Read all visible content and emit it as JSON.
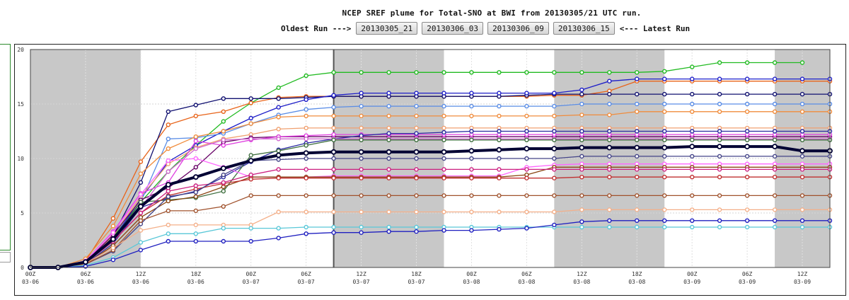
{
  "header": {
    "title": "NCEP SREF plume for Total-SNO at BWI from 20130305/21 UTC run.",
    "oldest_label": "Oldest Run --->",
    "latest_label": "<--- Latest Run",
    "runs": [
      "20130305_21",
      "20130306_03",
      "20130306_09",
      "20130306_15"
    ]
  },
  "chart_data": {
    "type": "line",
    "title": "NCEP SREF plume for Total-SNO at BWI from 20130305/21 UTC run.",
    "xlabel": "",
    "ylabel": "",
    "x_hours": [
      0,
      3,
      6,
      9,
      12,
      15,
      18,
      21,
      24,
      27,
      30,
      33,
      36,
      39,
      42,
      45,
      48,
      51,
      54,
      57,
      60,
      63,
      66,
      69,
      72,
      75,
      78,
      81,
      84,
      87
    ],
    "xlim": [
      0,
      87
    ],
    "ylim": [
      0,
      20
    ],
    "yticks": [
      0,
      5,
      10,
      15,
      20
    ],
    "xtick_labels": [
      {
        "t": "00Z",
        "d": "03-06"
      },
      {
        "t": "06Z",
        "d": "03-06"
      },
      {
        "t": "12Z",
        "d": "03-06"
      },
      {
        "t": "18Z",
        "d": "03-06"
      },
      {
        "t": "00Z",
        "d": "03-07"
      },
      {
        "t": "06Z",
        "d": "03-07"
      },
      {
        "t": "12Z",
        "d": "03-07"
      },
      {
        "t": "18Z",
        "d": "03-07"
      },
      {
        "t": "00Z",
        "d": "03-08"
      },
      {
        "t": "06Z",
        "d": "03-08"
      },
      {
        "t": "12Z",
        "d": "03-08"
      },
      {
        "t": "18Z",
        "d": "03-08"
      },
      {
        "t": "00Z",
        "d": "03-09"
      },
      {
        "t": "06Z",
        "d": "03-09"
      },
      {
        "t": "12Z",
        "d": "03-09"
      }
    ],
    "night_shading_hours": [
      [
        0,
        12
      ],
      [
        33,
        45
      ],
      [
        57,
        69
      ],
      [
        81,
        87
      ]
    ],
    "current_time_hour": 33,
    "grid": true,
    "series": [
      {
        "color": "#22bb22",
        "values": [
          0,
          0,
          0.5,
          2.8,
          6,
          8.8,
          11.2,
          13.4,
          15.1,
          16.5,
          17.6,
          17.9,
          17.9,
          17.9,
          17.9,
          17.9,
          17.9,
          17.9,
          17.9,
          17.9,
          17.9,
          17.9,
          17.9,
          18.0,
          18.4,
          18.8,
          18.8,
          18.8,
          18.8,
          null
        ]
      },
      {
        "color": "#e8641a",
        "values": [
          0,
          0,
          0.6,
          4.5,
          9.7,
          13.1,
          13.9,
          14.3,
          15.1,
          15.6,
          15.7,
          15.7,
          15.7,
          15.7,
          15.7,
          15.7,
          15.7,
          15.7,
          15.7,
          15.8,
          15.8,
          16.2,
          17.1,
          17.1,
          17.1,
          17.1,
          17.1,
          17.1,
          17.1,
          17.1
        ]
      },
      {
        "color": "#101070",
        "values": [
          0,
          0,
          0.4,
          2.9,
          7.8,
          14.3,
          14.9,
          15.5,
          15.5,
          15.5,
          15.6,
          15.7,
          15.7,
          15.7,
          15.7,
          15.7,
          15.7,
          15.7,
          15.8,
          15.9,
          15.9,
          15.9,
          15.9,
          15.9,
          15.9,
          15.9,
          15.9,
          15.9,
          15.9,
          15.9
        ]
      },
      {
        "color": "#1e1ec8",
        "values": [
          0,
          0,
          0.3,
          2.6,
          6.3,
          9.7,
          11.2,
          12.5,
          13.7,
          14.7,
          15.4,
          15.8,
          16.0,
          16.0,
          16.0,
          16.0,
          16.0,
          16.0,
          16.0,
          16.0,
          16.3,
          17.1,
          17.3,
          17.3,
          17.3,
          17.3,
          17.3,
          17.3,
          17.3,
          17.3
        ]
      },
      {
        "color": "#5a8de6",
        "values": [
          0,
          0,
          0.4,
          2.4,
          6.0,
          11.8,
          11.9,
          12.3,
          13.2,
          14.0,
          14.5,
          14.7,
          14.8,
          14.8,
          14.8,
          14.8,
          14.8,
          14.8,
          14.8,
          14.8,
          15.0,
          15.0,
          15.0,
          15.0,
          15.0,
          15.0,
          15.0,
          15.0,
          15.0,
          15.0
        ]
      },
      {
        "color": "#f08c3c",
        "values": [
          0,
          0,
          0.8,
          3.8,
          8.6,
          10.9,
          12.0,
          12.5,
          13.2,
          13.8,
          13.9,
          13.9,
          13.9,
          13.9,
          13.9,
          13.9,
          13.9,
          13.9,
          13.9,
          13.9,
          14.0,
          14.0,
          14.3,
          14.3,
          14.3,
          14.3,
          14.3,
          14.3,
          14.3,
          14.3
        ]
      },
      {
        "color": "#f0a070",
        "values": [
          0,
          0,
          0.5,
          2.9,
          6.5,
          9.5,
          11.0,
          11.8,
          12.2,
          12.7,
          12.8,
          12.8,
          12.8,
          12.8,
          12.8,
          12.8,
          12.8,
          12.8,
          12.8,
          12.8,
          12.8,
          12.8,
          12.8,
          12.8,
          12.8,
          12.8,
          12.8,
          12.8,
          12.8,
          12.8
        ]
      },
      {
        "color": "#660066",
        "values": [
          0,
          0,
          0.5,
          3.0,
          6.2,
          7.3,
          9.2,
          11.5,
          11.9,
          12.0,
          12.0,
          12.0,
          12.0,
          12.0,
          12.0,
          12.0,
          12.0,
          12.0,
          12.0,
          12.0,
          12.0,
          12.0,
          12.0,
          12.0,
          12.0,
          12.0,
          12.0,
          12.0,
          12.0,
          12.0
        ]
      },
      {
        "color": "#e040e0",
        "values": [
          0,
          0,
          0.6,
          3.3,
          6.8,
          7.8,
          11.6,
          11.2,
          11.7,
          12.0,
          12.1,
          12.2,
          12.2,
          12.2,
          12.2,
          12.2,
          12.2,
          12.2,
          12.2,
          12.2,
          12.2,
          12.2,
          12.2,
          12.2,
          12.2,
          12.2,
          12.2,
          12.2,
          12.2,
          12.2
        ]
      },
      {
        "color": "#2a2aa0",
        "values": [
          0,
          0,
          0.3,
          2.2,
          5.5,
          6.4,
          7.0,
          8.3,
          9.7,
          10.8,
          11.4,
          11.8,
          12.1,
          12.3,
          12.3,
          12.4,
          12.5,
          12.5,
          12.5,
          12.5,
          12.5,
          12.5,
          12.5,
          12.5,
          12.5,
          12.5,
          12.5,
          12.5,
          12.5,
          12.5
        ]
      },
      {
        "color": "#d06ad0",
        "values": [
          0,
          0,
          0.4,
          2.5,
          5.5,
          8.8,
          10.9,
          11.7,
          11.8,
          11.8,
          11.8,
          11.8,
          11.8,
          11.8,
          11.8,
          11.8,
          11.8,
          11.8,
          11.8,
          11.8,
          11.8,
          11.8,
          11.8,
          11.8,
          11.8,
          11.8,
          11.8,
          11.8,
          11.8,
          11.8
        ]
      },
      {
        "color": "#407040",
        "values": [
          0,
          0,
          0.4,
          2.6,
          6.0,
          6.2,
          6.4,
          7.0,
          10.3,
          10.7,
          11.2,
          11.7,
          11.7,
          11.7,
          11.7,
          11.7,
          11.7,
          11.7,
          11.7,
          11.7,
          11.7,
          11.7,
          11.7,
          11.7,
          11.7,
          11.7,
          11.7,
          11.7,
          11.7,
          11.7
        ]
      },
      {
        "color": "#000033",
        "values": [
          0,
          0,
          0.5,
          2.6,
          5.6,
          7.6,
          8.3,
          9.1,
          9.8,
          10.3,
          10.5,
          10.6,
          10.6,
          10.6,
          10.6,
          10.6,
          10.7,
          10.8,
          10.9,
          10.9,
          11.0,
          11.0,
          11.0,
          11.0,
          11.1,
          11.1,
          11.1,
          11.1,
          10.7,
          10.7
        ]
      },
      {
        "color": "#ff66ff",
        "values": [
          0,
          0,
          0.6,
          3.2,
          6.7,
          9.8,
          10.0,
          9.2,
          8.3,
          8.3,
          8.3,
          8.4,
          8.4,
          8.4,
          8.4,
          8.4,
          8.4,
          8.4,
          9.2,
          9.4,
          9.5,
          9.5,
          9.5,
          9.5,
          9.5,
          9.5,
          9.5,
          9.5,
          9.5,
          9.5
        ]
      },
      {
        "color": "#8b4513",
        "values": [
          0,
          0,
          0.3,
          2.0,
          4.6,
          6.1,
          6.5,
          7.4,
          8.3,
          8.3,
          8.3,
          8.3,
          8.3,
          8.3,
          8.3,
          8.3,
          8.3,
          8.3,
          8.5,
          9.2,
          9.2,
          9.2,
          9.2,
          9.2,
          9.2,
          9.2,
          9.2,
          9.2,
          9.2,
          9.2
        ]
      },
      {
        "color": "#c03030",
        "values": [
          0,
          0,
          0.4,
          2.4,
          5.0,
          6.6,
          7.2,
          7.7,
          8.1,
          8.2,
          8.2,
          8.2,
          8.2,
          8.2,
          8.2,
          8.2,
          8.2,
          8.2,
          8.2,
          8.2,
          8.3,
          8.3,
          8.3,
          8.3,
          8.3,
          8.3,
          8.3,
          8.3,
          8.3,
          8.3
        ]
      },
      {
        "color": "#cc2080",
        "values": [
          0,
          0,
          0.4,
          2.4,
          5.0,
          7.0,
          7.5,
          7.8,
          8.5,
          9.0,
          9.0,
          9.0,
          9.0,
          9.0,
          9.0,
          9.0,
          9.0,
          9.0,
          9.0,
          9.0,
          9.0,
          9.0,
          9.0,
          9.0,
          9.0,
          9.0,
          9.0,
          9.0,
          9.0,
          9.0
        ]
      },
      {
        "color": "#444488",
        "values": [
          0,
          0,
          0.3,
          1.5,
          4.0,
          6.5,
          6.9,
          8.5,
          9.8,
          9.9,
          10.0,
          10.0,
          10.0,
          10.0,
          10.0,
          10.0,
          10.0,
          10.0,
          10.0,
          10.0,
          10.2,
          10.2,
          10.2,
          10.2,
          10.2,
          10.2,
          10.2,
          10.2,
          10.2,
          10.2
        ]
      },
      {
        "color": "#a0522d",
        "values": [
          0,
          0,
          0.3,
          1.6,
          4.3,
          5.2,
          5.2,
          5.6,
          6.6,
          6.6,
          6.6,
          6.6,
          6.6,
          6.6,
          6.6,
          6.6,
          6.6,
          6.6,
          6.6,
          6.6,
          6.6,
          6.6,
          6.6,
          6.6,
          6.6,
          6.6,
          6.6,
          6.6,
          6.6,
          6.6
        ]
      },
      {
        "color": "#f4b08a",
        "values": [
          0,
          0,
          0.4,
          1.8,
          3.4,
          3.9,
          3.9,
          3.9,
          3.9,
          5.1,
          5.1,
          5.1,
          5.1,
          5.1,
          5.1,
          5.1,
          5.1,
          5.1,
          5.1,
          5.1,
          5.3,
          5.3,
          5.3,
          5.3,
          5.3,
          5.3,
          5.3,
          5.3,
          5.3,
          5.3
        ]
      },
      {
        "color": "#5ac8d8",
        "values": [
          0,
          0,
          0.2,
          0.9,
          2.3,
          3.1,
          3.1,
          3.6,
          3.6,
          3.6,
          3.7,
          3.7,
          3.7,
          3.7,
          3.7,
          3.7,
          3.7,
          3.7,
          3.7,
          3.7,
          3.7,
          3.7,
          3.7,
          3.7,
          3.7,
          3.7,
          3.7,
          3.7,
          3.7,
          3.7
        ]
      },
      {
        "color": "#2020c0",
        "values": [
          0,
          0,
          0.1,
          0.7,
          1.6,
          2.4,
          2.4,
          2.4,
          2.4,
          2.7,
          3.1,
          3.2,
          3.2,
          3.3,
          3.3,
          3.4,
          3.4,
          3.5,
          3.6,
          3.9,
          4.2,
          4.3,
          4.3,
          4.3,
          4.3,
          4.3,
          4.3,
          4.3,
          4.3,
          4.3
        ]
      }
    ],
    "mean_series_index": 12
  }
}
